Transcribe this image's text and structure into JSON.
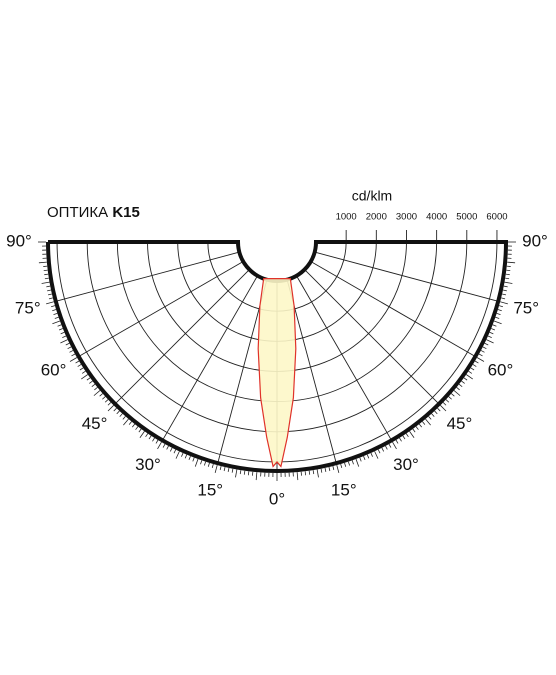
{
  "chart_data": {
    "type": "polar",
    "title": "ОПТИКА",
    "title_bold": "K15",
    "r_label": "cd/klm",
    "rlim": [
      0,
      6300
    ],
    "rticks": [
      1000,
      2000,
      3000,
      4000,
      5000,
      6000
    ],
    "angle_ticks": [
      {
        "value": -90,
        "label": "90°"
      },
      {
        "value": -75,
        "label": "75°"
      },
      {
        "value": -60,
        "label": "60°"
      },
      {
        "value": -45,
        "label": "45°"
      },
      {
        "value": -30,
        "label": "30°"
      },
      {
        "value": -15,
        "label": "15°"
      },
      {
        "value": 0,
        "label": "0°"
      },
      {
        "value": 15,
        "label": "15°"
      },
      {
        "value": 30,
        "label": "30°"
      },
      {
        "value": 45,
        "label": "45°"
      },
      {
        "value": 60,
        "label": "60°"
      },
      {
        "value": 75,
        "label": "75°"
      },
      {
        "value": 90,
        "label": "90°"
      }
    ],
    "series": [
      {
        "color": "#e0322a",
        "fill": "#fdf7c8",
        "angles": [
          -20,
          -15,
          -10,
          -6,
          -3,
          -1,
          0,
          1,
          3,
          6,
          10,
          15,
          20
        ],
        "values": [
          0,
          900,
          2300,
          3900,
          5200,
          6150,
          6000,
          6150,
          5200,
          3900,
          2300,
          900,
          0
        ]
      }
    ]
  }
}
